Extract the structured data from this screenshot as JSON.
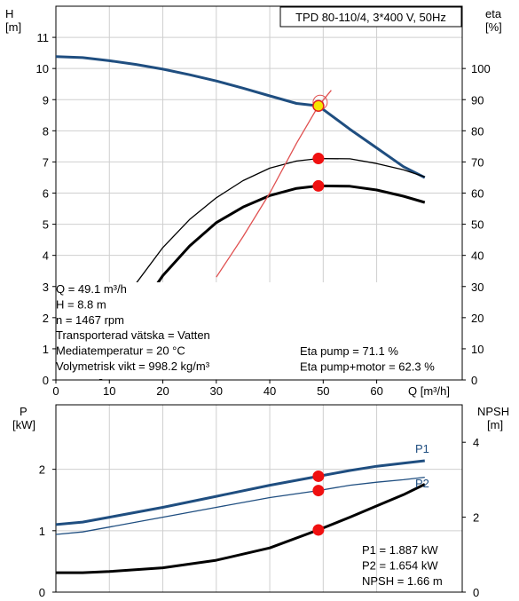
{
  "chart_data": [
    {
      "type": "line",
      "title": "TPD 80-110/4, 3*400 V, 50Hz",
      "xlabel": "Q [m³/h]",
      "ylabel_left": "H",
      "ylabel_left_unit": "[m]",
      "ylabel_right": "eta",
      "ylabel_right_unit": "[%]",
      "xlim": [
        0,
        76
      ],
      "ylim_left": [
        0,
        12
      ],
      "ylim_right": [
        0,
        120
      ],
      "x_ticks": [
        "0",
        "10",
        "20",
        "30",
        "40",
        "50",
        "60"
      ],
      "y_left_ticks": [
        "0",
        "1",
        "2",
        "3",
        "4",
        "5",
        "6",
        "7",
        "8",
        "9",
        "10",
        "11"
      ],
      "y_right_ticks": [
        "0",
        "10",
        "20",
        "30",
        "40",
        "50",
        "60",
        "70",
        "80",
        "90",
        "100"
      ],
      "grid": true,
      "series": [
        {
          "name": "H",
          "axis": "left",
          "color": "#1f4e80",
          "style": "thick",
          "points": [
            [
              0,
              10.38
            ],
            [
              5,
              10.35
            ],
            [
              10,
              10.25
            ],
            [
              15,
              10.13
            ],
            [
              20,
              9.98
            ],
            [
              25,
              9.8
            ],
            [
              30,
              9.6
            ],
            [
              35,
              9.37
            ],
            [
              40,
              9.12
            ],
            [
              45,
              8.88
            ],
            [
              49.1,
              8.8
            ],
            [
              55,
              8.05
            ],
            [
              60,
              7.45
            ],
            [
              65,
              6.85
            ],
            [
              69,
              6.5
            ]
          ]
        },
        {
          "name": "Eta pump",
          "axis": "right",
          "color": "#000000",
          "style": "thin",
          "points": [
            [
              5,
              1
            ],
            [
              10,
              17
            ],
            [
              15,
              31
            ],
            [
              20,
              42.5
            ],
            [
              25,
              51.5
            ],
            [
              30,
              58.5
            ],
            [
              35,
              64
            ],
            [
              40,
              68
            ],
            [
              45,
              70.3
            ],
            [
              49.1,
              71.1
            ],
            [
              55,
              71
            ],
            [
              60,
              69.5
            ],
            [
              65,
              67.5
            ],
            [
              69,
              65.2
            ]
          ]
        },
        {
          "name": "Eta pump+motor",
          "axis": "right",
          "color": "#000000",
          "style": "thick",
          "points": [
            [
              5,
              -12
            ],
            [
              10,
              6
            ],
            [
              15,
              21
            ],
            [
              20,
              33.5
            ],
            [
              25,
              43
            ],
            [
              30,
              50.5
            ],
            [
              35,
              55.5
            ],
            [
              40,
              59.2
            ],
            [
              45,
              61.5
            ],
            [
              49.1,
              62.3
            ],
            [
              55,
              62.2
            ],
            [
              60,
              61
            ],
            [
              65,
              59
            ],
            [
              69,
              57
            ]
          ]
        },
        {
          "name": "System",
          "axis": "left",
          "color": "#e05050",
          "style": "thin",
          "points": [
            [
              30,
              3.3
            ],
            [
              35,
              4.6
            ],
            [
              40,
              6.0
            ],
            [
              45,
              7.6
            ],
            [
              49.1,
              8.8
            ],
            [
              51.5,
              9.3
            ]
          ]
        }
      ],
      "markers": [
        {
          "x": 49.1,
          "y": 8.8,
          "axis": "left",
          "color": "#f6e500",
          "edge": "#e02020"
        },
        {
          "x": 49.1,
          "y": 71.1,
          "axis": "right",
          "color": "#f01010"
        },
        {
          "x": 49.1,
          "y": 62.3,
          "axis": "right",
          "color": "#f01010"
        }
      ],
      "annotations_left": [
        "Q = 49.1 m³/h",
        "H = 8.8 m",
        "n = 1467 rpm",
        "Transporterad vätska = Vatten",
        "Mediatemperatur = 20 °C",
        "Volymetrisk vikt = 998.2 kg/m³"
      ],
      "annotations_right": [
        "Eta pump = 71.1 %",
        "Eta pump+motor = 62.3 %"
      ]
    },
    {
      "type": "line",
      "ylabel_left": "P",
      "ylabel_left_unit": "[kW]",
      "ylabel_right": "NPSH",
      "ylabel_right_unit": "[m]",
      "xlim": [
        0,
        76
      ],
      "ylim_left": [
        0,
        3.05
      ],
      "ylim_right": [
        0,
        5
      ],
      "y_left_ticks": [
        "0",
        "1",
        "2"
      ],
      "y_right_ticks": [
        "0",
        "2",
        "4"
      ],
      "grid": true,
      "series": [
        {
          "name": "P1",
          "axis": "left",
          "color": "#1f4e80",
          "style": "thick",
          "points": [
            [
              0,
              1.1
            ],
            [
              5,
              1.14
            ],
            [
              10,
              1.22
            ],
            [
              20,
              1.38
            ],
            [
              30,
              1.56
            ],
            [
              40,
              1.74
            ],
            [
              49.1,
              1.887
            ],
            [
              55,
              1.98
            ],
            [
              60,
              2.05
            ],
            [
              65,
              2.1
            ],
            [
              69,
              2.14
            ]
          ]
        },
        {
          "name": "P2",
          "axis": "left",
          "color": "#1f4e80",
          "style": "thin",
          "points": [
            [
              0,
              0.94
            ],
            [
              5,
              0.98
            ],
            [
              10,
              1.06
            ],
            [
              20,
              1.22
            ],
            [
              30,
              1.38
            ],
            [
              40,
              1.54
            ],
            [
              49.1,
              1.654
            ],
            [
              55,
              1.74
            ],
            [
              60,
              1.79
            ],
            [
              65,
              1.83
            ],
            [
              69,
              1.87
            ]
          ]
        },
        {
          "name": "NPSH",
          "axis": "right",
          "color": "#000000",
          "style": "thick",
          "points": [
            [
              0,
              0.52
            ],
            [
              5,
              0.52
            ],
            [
              10,
              0.55
            ],
            [
              20,
              0.65
            ],
            [
              30,
              0.85
            ],
            [
              40,
              1.18
            ],
            [
              49.1,
              1.66
            ],
            [
              55,
              2.0
            ],
            [
              60,
              2.3
            ],
            [
              65,
              2.6
            ],
            [
              69,
              2.88
            ]
          ]
        }
      ],
      "markers": [
        {
          "x": 49.1,
          "y": 1.887,
          "axis": "left",
          "color": "#f01010"
        },
        {
          "x": 49.1,
          "y": 1.654,
          "axis": "left",
          "color": "#f01010"
        },
        {
          "x": 49.1,
          "y": 1.66,
          "axis": "right",
          "color": "#f01010"
        }
      ],
      "series_labels": [
        {
          "text": "P1",
          "series": "P1"
        },
        {
          "text": "P2",
          "series": "P2"
        }
      ],
      "annotations_right": [
        "P1 = 1.887 kW",
        "P2 = 1.654 kW",
        "NPSH = 1.66 m"
      ]
    }
  ]
}
